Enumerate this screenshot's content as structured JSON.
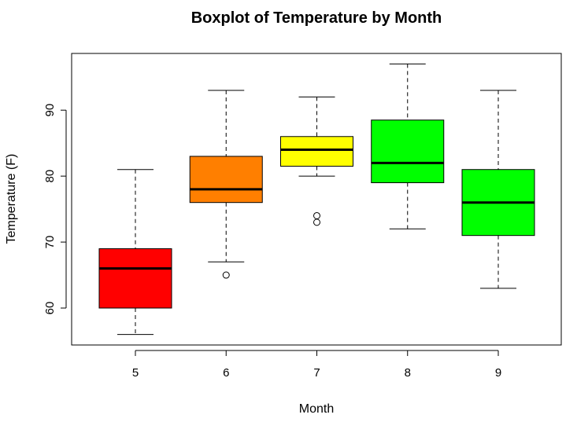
{
  "chart_data": {
    "type": "boxplot",
    "title": "Boxplot of Temperature by Month",
    "xlabel": "Month",
    "ylabel": "Temperature (F)",
    "ylim": [
      54.4,
      98.6
    ],
    "yticks": [
      60,
      70,
      80,
      90
    ],
    "grid": false,
    "categories": [
      "5",
      "6",
      "7",
      "8",
      "9"
    ],
    "boxes": [
      {
        "category": "5",
        "color": "#FF0000",
        "min": 56,
        "q1": 60,
        "median": 66,
        "q3": 69,
        "max": 81,
        "outliers": []
      },
      {
        "category": "6",
        "color": "#FF7F00",
        "min": 67,
        "q1": 76,
        "median": 78,
        "q3": 83,
        "max": 93,
        "outliers": [
          65
        ]
      },
      {
        "category": "7",
        "color": "#FFFF00",
        "min": 80,
        "q1": 81.5,
        "median": 84,
        "q3": 86,
        "max": 92,
        "outliers": [
          73,
          74
        ]
      },
      {
        "category": "8",
        "color": "#00FF00",
        "min": 72,
        "q1": 79,
        "median": 82,
        "q3": 88.5,
        "max": 97,
        "outliers": []
      },
      {
        "category": "9",
        "color": "#00FF00",
        "min": 63,
        "q1": 71,
        "median": 76,
        "q3": 81,
        "max": 93,
        "outliers": []
      }
    ]
  }
}
